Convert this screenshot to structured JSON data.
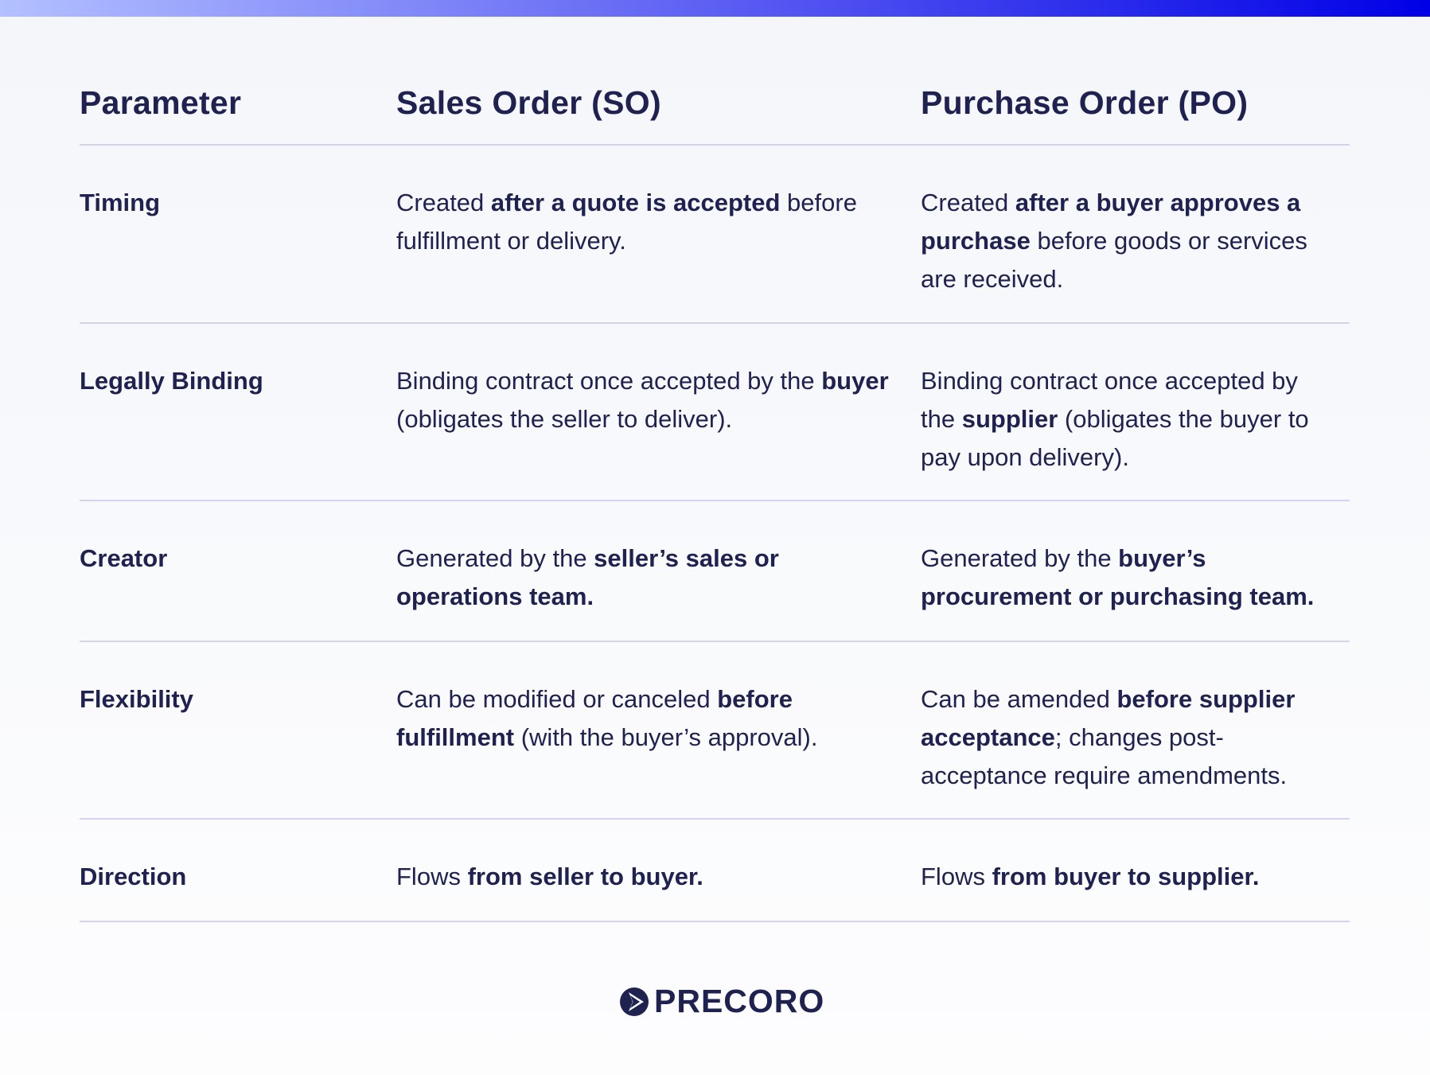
{
  "header": {
    "parameter": "Parameter",
    "so": "Sales Order (SO)",
    "po": "Purchase Order (PO)"
  },
  "rows": [
    {
      "parameter": "Timing",
      "so": [
        {
          "t": "Created "
        },
        {
          "t": "after a quote is accepted",
          "b": true
        },
        {
          "t": " before fulfillment or delivery."
        }
      ],
      "po": [
        {
          "t": "Created "
        },
        {
          "t": "after a buyer approves a purchase",
          "b": true
        },
        {
          "t": " before goods or services are received."
        }
      ]
    },
    {
      "parameter": "Legally Binding",
      "so": [
        {
          "t": "Binding contract once accepted by the "
        },
        {
          "t": "buyer",
          "b": true
        },
        {
          "t": " (obligates the seller to deliver)."
        }
      ],
      "po": [
        {
          "t": "Binding contract once accepted by the "
        },
        {
          "t": "supplier",
          "b": true
        },
        {
          "t": " (obligates the buyer to pay upon delivery)."
        }
      ]
    },
    {
      "parameter": "Creator",
      "so": [
        {
          "t": "Generated by the "
        },
        {
          "t": "seller’s sales or operations team.",
          "b": true
        }
      ],
      "po": [
        {
          "t": "Generated by the "
        },
        {
          "t": "buyer’s procurement or purchasing team.",
          "b": true
        }
      ]
    },
    {
      "parameter": "Flexibility",
      "so": [
        {
          "t": "Can be modified or canceled "
        },
        {
          "t": "before fulfillment",
          "b": true
        },
        {
          "t": " (with the buyer’s approval)."
        }
      ],
      "po": [
        {
          "t": "Can be amended "
        },
        {
          "t": "before supplier acceptance",
          "b": true
        },
        {
          "t": "; changes post-acceptance require amendments."
        }
      ]
    },
    {
      "parameter": "Direction",
      "so": [
        {
          "t": "Flows "
        },
        {
          "t": "from seller to buyer.",
          "b": true
        }
      ],
      "po": [
        {
          "t": "Flows "
        },
        {
          "t": "from buyer to supplier.",
          "b": true
        }
      ]
    }
  ],
  "logo": {
    "text": "PRECORO",
    "icon": "play-circle-logo-icon"
  },
  "colors": {
    "text": "#1f2150",
    "divider": "#d3d3f0",
    "accent_bar_end": "#0000e6"
  }
}
